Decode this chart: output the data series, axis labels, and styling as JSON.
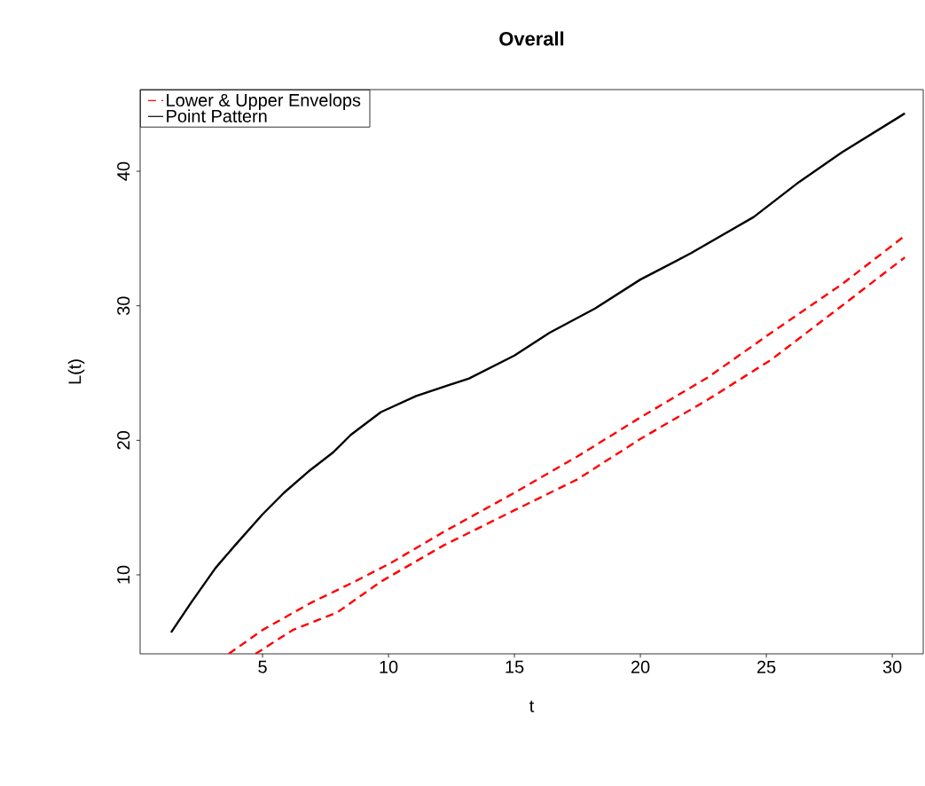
{
  "chart_data": {
    "type": "line",
    "title": "Overall",
    "xlabel": "t",
    "ylabel": "L(t)",
    "xlim": [
      0.14,
      31.23
    ],
    "ylim": [
      4.13,
      46.07
    ],
    "xticks": [
      5,
      10,
      15,
      20,
      25,
      30
    ],
    "yticks": [
      10,
      20,
      30,
      40
    ],
    "grid": false,
    "legend": "top left",
    "marker": "none",
    "series": [
      {
        "name": "Lower & Upper Envelops",
        "color": "#ff0000",
        "line_style": "dashed",
        "x": [
          3.66,
          5.0,
          6.9,
          8.66,
          10.07,
          12.2,
          15.0,
          17.5,
          20.0,
          22.7,
          25.2,
          28.0,
          30.5
        ],
        "values": [
          4.13,
          5.9,
          7.9,
          9.5,
          10.86,
          13.2,
          16.1,
          18.8,
          21.7,
          24.7,
          28.0,
          31.6,
          35.2
        ]
      },
      {
        "color": "#ff0000",
        "line_style": "dashed",
        "x": [
          4.72,
          6.2,
          7.96,
          9.7,
          12.2,
          15.0,
          17.5,
          20.0,
          22.7,
          25.2,
          28.0,
          30.5
        ],
        "values": [
          4.13,
          5.9,
          7.2,
          9.5,
          12.2,
          14.8,
          17.1,
          20.1,
          23.05,
          26.0,
          30.0,
          33.6
        ]
      },
      {
        "name": "Point Pattern",
        "color": "#000000",
        "line_style": "solid",
        "x": [
          1.37,
          2.15,
          3.13,
          3.91,
          5.0,
          5.85,
          6.9,
          7.8,
          8.5,
          9.7,
          11.1,
          13.2,
          15.0,
          16.4,
          18.2,
          20.0,
          22.0,
          24.5,
          26.3,
          28.0,
          30.5
        ],
        "values": [
          5.72,
          7.9,
          10.5,
          12.2,
          14.5,
          16.1,
          17.8,
          19.1,
          20.4,
          22.1,
          23.3,
          24.6,
          26.3,
          28.0,
          29.8,
          31.95,
          33.9,
          36.6,
          39.2,
          41.4,
          44.3
        ]
      }
    ]
  }
}
